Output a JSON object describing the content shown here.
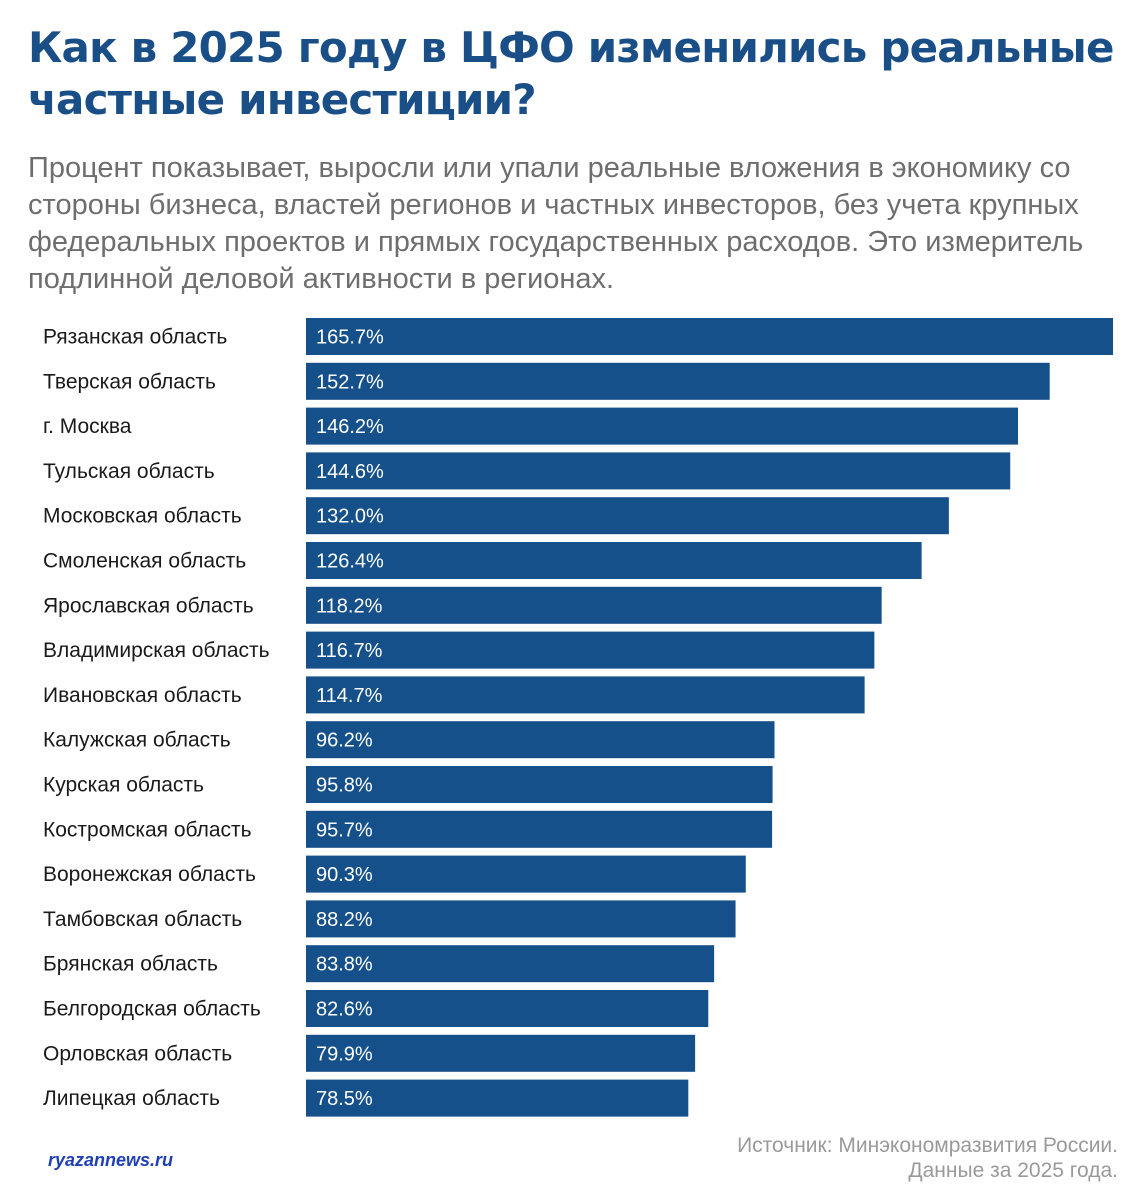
{
  "header": {
    "title": "Как в 2025 году в ЦФО изменились реальные частные инвестиции?",
    "subtitle": "Процент показывает, выросли или упали реальные вложения в экономику со стороны бизнеса, властей регионов и частных инвесторов, без учета крупных федеральных проектов и прямых государственных расходов. Это измеритель подлинной деловой активности в регионах."
  },
  "footer": {
    "source_line1": "Источник: Минэкономразвития России.",
    "source_line2": "Данные за 2025 года.",
    "watermark": "ryazannews.ru"
  },
  "colors": {
    "bar": "#15508b",
    "title": "#1a4e86",
    "label": "#1a1a1a",
    "value_text": "#ffffff"
  },
  "chart_data": {
    "type": "bar",
    "orientation": "horizontal",
    "title": "Как в 2025 году в ЦФО изменились реальные частные инвестиции?",
    "xlabel": "",
    "ylabel": "",
    "value_suffix": "%",
    "xlim": [
      0,
      165.7
    ],
    "grid": false,
    "legend": "none",
    "categories": [
      "Рязанская область",
      "Тверская область",
      "г. Москва",
      "Тульская область",
      "Московская область",
      "Смоленская область",
      "Ярославская область",
      "Владимирская область",
      "Ивановская область",
      "Калужская область",
      "Курская область",
      "Костромская область",
      "Воронежская область",
      "Тамбовская область",
      "Брянская область",
      "Белгородская область",
      "Орловская область",
      "Липецкая область"
    ],
    "values": [
      165.7,
      152.7,
      146.2,
      144.6,
      132.0,
      126.4,
      118.2,
      116.7,
      114.7,
      96.2,
      95.8,
      95.7,
      90.3,
      88.2,
      83.8,
      82.6,
      79.9,
      78.5
    ],
    "value_labels": [
      "165.7%",
      "152.7%",
      "146.2%",
      "144.6%",
      "132.0%",
      "126.4%",
      "118.2%",
      "116.7%",
      "114.7%",
      "96.2%",
      "95.8%",
      "95.7%",
      "90.3%",
      "88.2%",
      "83.8%",
      "82.6%",
      "79.9%",
      "78.5%"
    ]
  }
}
